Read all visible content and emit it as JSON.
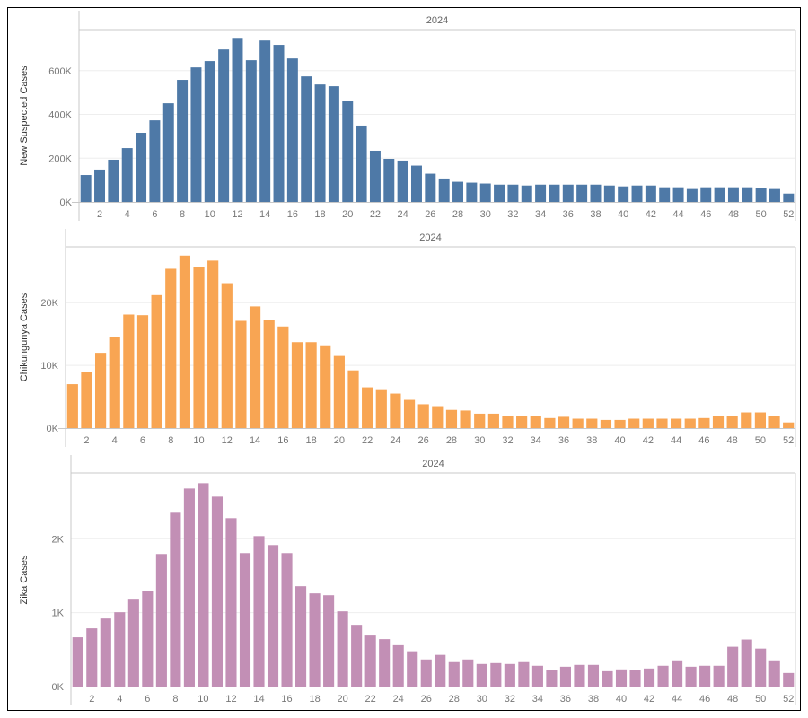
{
  "chart_data": [
    {
      "type": "bar",
      "title": "2024",
      "ylabel": "New Suspected Cases",
      "color": "#4e79a7",
      "ylim": [
        0,
        788000
      ],
      "yticks": [
        0,
        200000,
        400000,
        600000
      ],
      "ytick_labels": [
        "0K",
        "200K",
        "400K",
        "600K"
      ],
      "categories": [
        1,
        2,
        3,
        4,
        5,
        6,
        7,
        8,
        9,
        10,
        11,
        12,
        13,
        14,
        15,
        16,
        17,
        18,
        19,
        20,
        21,
        22,
        23,
        24,
        25,
        26,
        27,
        28,
        29,
        30,
        31,
        32,
        33,
        34,
        35,
        36,
        37,
        38,
        39,
        40,
        41,
        42,
        43,
        44,
        45,
        46,
        47,
        48,
        49,
        50,
        51,
        52
      ],
      "xtick_labels": [
        "2",
        "4",
        "6",
        "8",
        "10",
        "12",
        "14",
        "16",
        "18",
        "20",
        "22",
        "24",
        "26",
        "28",
        "30",
        "32",
        "34",
        "36",
        "38",
        "40",
        "42",
        "44",
        "46",
        "48",
        "50",
        "52"
      ],
      "values": [
        123000,
        148000,
        193000,
        246000,
        316000,
        373000,
        451000,
        558000,
        615000,
        644000,
        697000,
        750000,
        648000,
        738000,
        718000,
        656000,
        574000,
        537000,
        529000,
        463000,
        349000,
        234000,
        197000,
        189000,
        166000,
        129000,
        107000,
        92000,
        88000,
        84000,
        79000,
        79000,
        75000,
        79000,
        79000,
        79000,
        79000,
        79000,
        75000,
        71000,
        75000,
        75000,
        67000,
        67000,
        59000,
        67000,
        67000,
        67000,
        67000,
        63000,
        59000,
        38000
      ]
    },
    {
      "type": "bar",
      "title": "2024",
      "ylabel": "Chikungunya Cases",
      "color": "#f8a553",
      "ylim": [
        0,
        28900
      ],
      "yticks": [
        0,
        10000,
        20000
      ],
      "ytick_labels": [
        "0K",
        "10K",
        "20K"
      ],
      "categories": [
        1,
        2,
        3,
        4,
        5,
        6,
        7,
        8,
        9,
        10,
        11,
        12,
        13,
        14,
        15,
        16,
        17,
        18,
        19,
        20,
        21,
        22,
        23,
        24,
        25,
        26,
        27,
        28,
        29,
        30,
        31,
        32,
        33,
        34,
        35,
        36,
        37,
        38,
        39,
        40,
        41,
        42,
        43,
        44,
        45,
        46,
        47,
        48,
        49,
        50,
        51,
        52
      ],
      "xtick_labels": [
        "2",
        "4",
        "6",
        "8",
        "10",
        "12",
        "14",
        "16",
        "18",
        "20",
        "22",
        "24",
        "26",
        "28",
        "30",
        "32",
        "34",
        "36",
        "38",
        "40",
        "42",
        "44",
        "46",
        "48",
        "50",
        "52"
      ],
      "values": [
        7000,
        9000,
        12000,
        14500,
        18100,
        18000,
        21200,
        25400,
        27500,
        25700,
        26700,
        23100,
        17100,
        19400,
        17200,
        16200,
        13700,
        13700,
        13200,
        11500,
        9200,
        6500,
        6200,
        5500,
        4500,
        3800,
        3500,
        2900,
        2800,
        2300,
        2300,
        2000,
        1900,
        1900,
        1600,
        1800,
        1500,
        1500,
        1300,
        1300,
        1500,
        1500,
        1500,
        1500,
        1500,
        1600,
        1900,
        2000,
        2500,
        2500,
        1900,
        900
      ]
    },
    {
      "type": "bar",
      "title": "2024",
      "ylabel": "Zika Cases",
      "color": "#c28fb5",
      "ylim": [
        0,
        2890
      ],
      "yticks": [
        0,
        1000,
        2000
      ],
      "ytick_labels": [
        "0K",
        "1K",
        "2K"
      ],
      "categories": [
        1,
        2,
        3,
        4,
        5,
        6,
        7,
        8,
        9,
        10,
        11,
        12,
        13,
        14,
        15,
        16,
        17,
        18,
        19,
        20,
        21,
        22,
        23,
        24,
        25,
        26,
        27,
        28,
        29,
        30,
        31,
        32,
        33,
        34,
        35,
        36,
        37,
        38,
        39,
        40,
        41,
        42,
        43,
        44,
        45,
        46,
        47,
        48,
        49,
        50,
        51,
        52
      ],
      "xtick_labels": [
        "2",
        "4",
        "6",
        "8",
        "10",
        "12",
        "14",
        "16",
        "18",
        "20",
        "22",
        "24",
        "26",
        "28",
        "30",
        "32",
        "34",
        "36",
        "38",
        "40",
        "42",
        "44",
        "46",
        "48",
        "50",
        "52"
      ],
      "values": [
        667,
        788,
        921,
        1006,
        1188,
        1297,
        1794,
        2352,
        2679,
        2752,
        2570,
        2279,
        1806,
        2036,
        1915,
        1806,
        1358,
        1261,
        1236,
        1018,
        836,
        691,
        642,
        560,
        478,
        367,
        429,
        331,
        367,
        306,
        318,
        306,
        331,
        282,
        220,
        269,
        294,
        294,
        208,
        233,
        220,
        245,
        282,
        355,
        269,
        282,
        282,
        539,
        637,
        514,
        355,
        184
      ]
    }
  ]
}
